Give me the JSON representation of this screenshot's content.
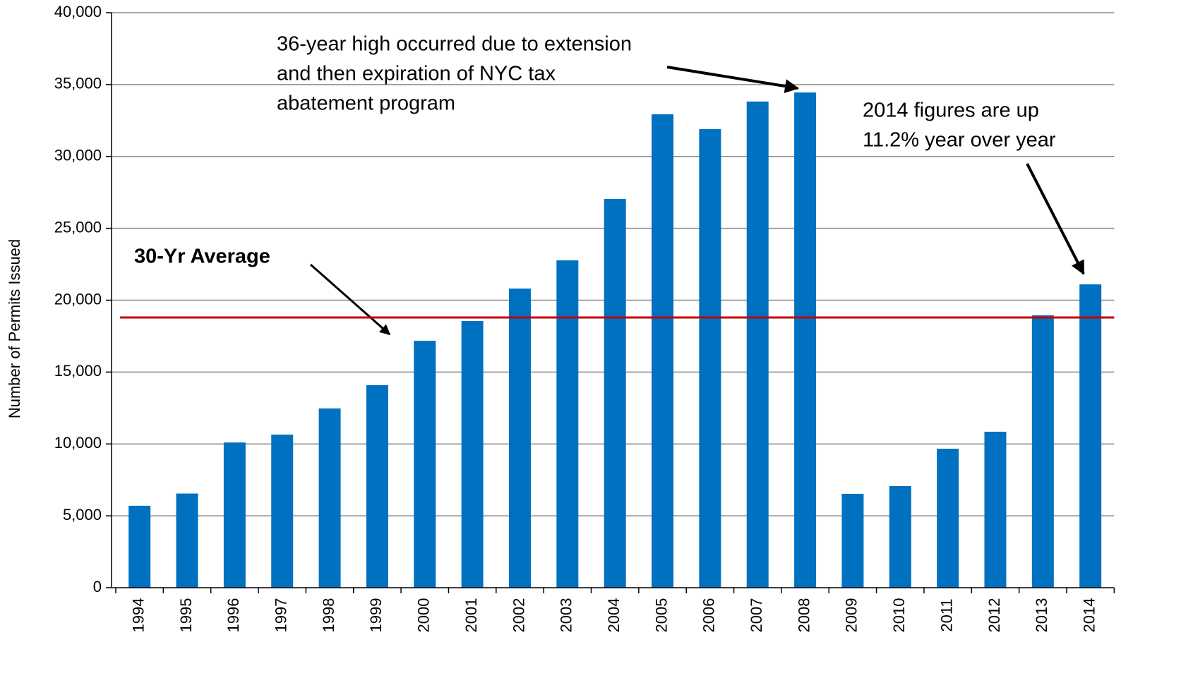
{
  "chart_data": {
    "type": "bar",
    "y_label": "Number of Permits Issued",
    "categories": [
      "1994",
      "1995",
      "1996",
      "1997",
      "1998",
      "1999",
      "2000",
      "2001",
      "2002",
      "2003",
      "2004",
      "2005",
      "2006",
      "2007",
      "2008",
      "2009",
      "2010",
      "2011",
      "2012",
      "2013",
      "2014"
    ],
    "values": [
      5700,
      6550,
      10100,
      10650,
      12470,
      14090,
      17180,
      18550,
      20810,
      22770,
      27040,
      32930,
      31900,
      33820,
      34450,
      6530,
      7070,
      9670,
      10850,
      18950,
      21100
    ],
    "color": "#0070c0",
    "average": 18800,
    "average_color": "#c00000",
    "ylim": [
      0,
      40000
    ],
    "yticks": [
      0,
      {
        "value": 5000,
        "label": "5,000"
      },
      {
        "value": 10000,
        "label": "10,000"
      },
      {
        "value": 15000,
        "label": "15,000"
      },
      {
        "value": 20000,
        "label": "20,000"
      },
      {
        "value": 25000,
        "label": "25,000"
      },
      {
        "value": 30000,
        "label": "30,000"
      },
      {
        "value": 35000,
        "label": "35,000"
      },
      {
        "value": 40000,
        "label": "40,000"
      }
    ],
    "grid": true,
    "annotations": {
      "high": [
        "36-year high occurred due to extension",
        "and then expiration of NYC tax",
        "abatement program"
      ],
      "average": "30-Yr Average",
      "latest": [
        "2014 figures are up",
        "11.2% year over year"
      ]
    }
  }
}
